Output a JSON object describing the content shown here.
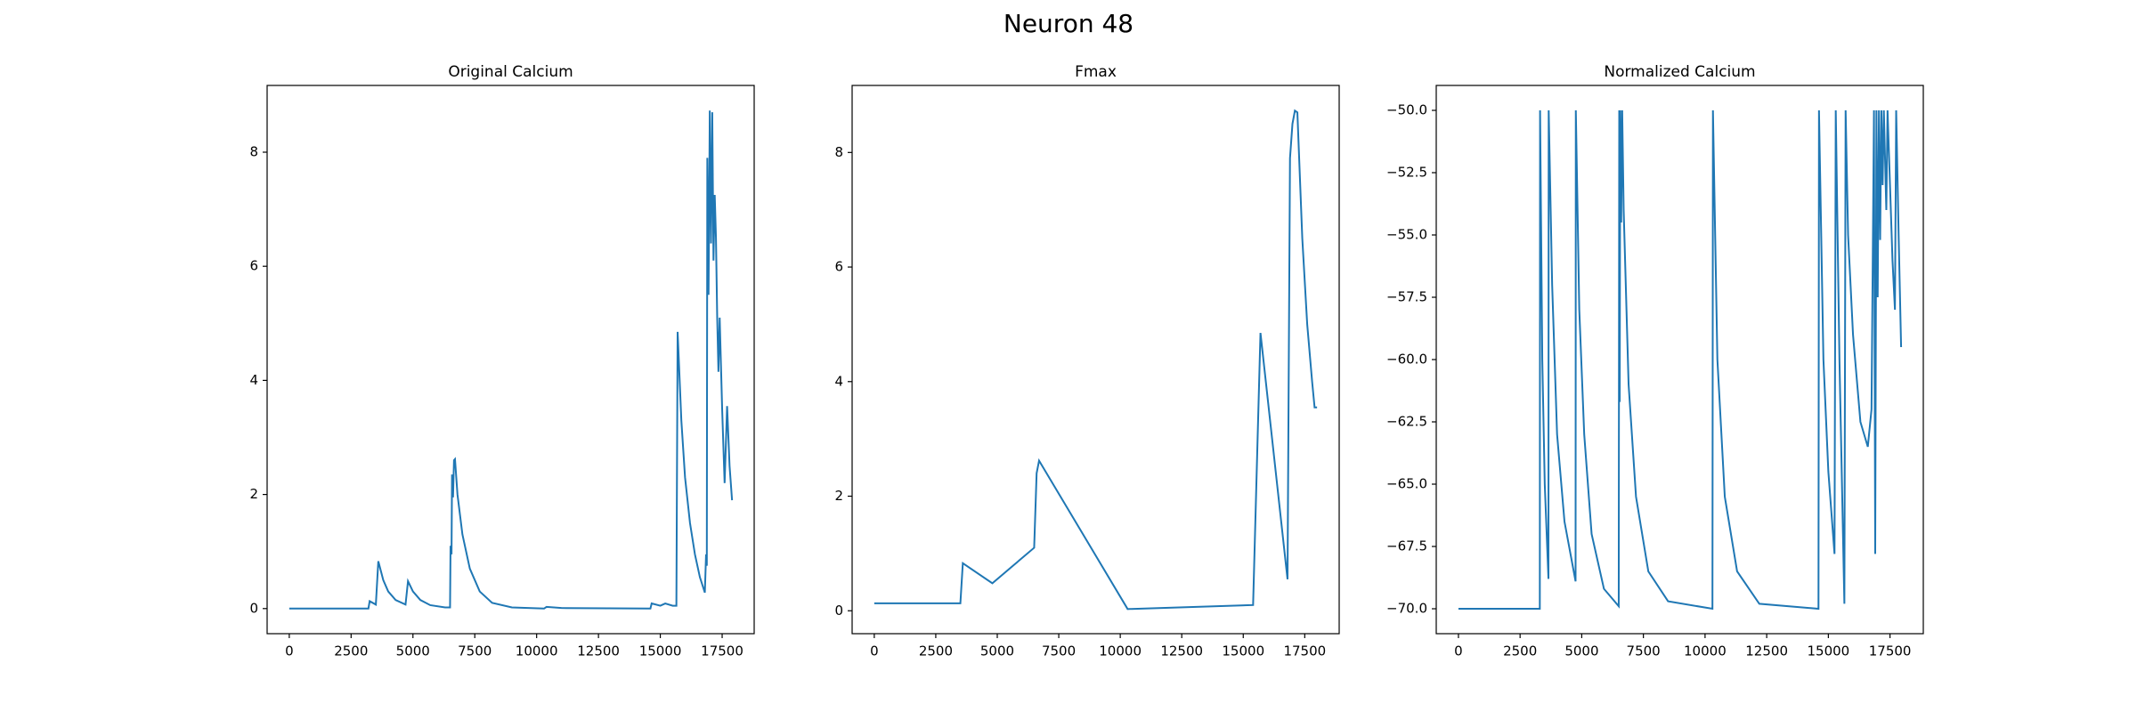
{
  "title": "Neuron 48",
  "chart_data": [
    {
      "type": "line",
      "title": "Original Calcium",
      "color": "#1f77b4",
      "x": [
        0,
        3200,
        3250,
        3500,
        3600,
        3800,
        4000,
        4300,
        4700,
        4800,
        5000,
        5300,
        5700,
        6300,
        6500,
        6520,
        6560,
        6580,
        6620,
        6660,
        6700,
        6800,
        7000,
        7300,
        7700,
        8200,
        9000,
        10300,
        10400,
        11000,
        14600,
        14650,
        15000,
        15200,
        15500,
        15650,
        15700,
        15850,
        16000,
        16200,
        16400,
        16600,
        16800,
        16850,
        16880,
        16900,
        16950,
        17000,
        17050,
        17100,
        17150,
        17200,
        17250,
        17300,
        17350,
        17400,
        17500,
        17600,
        17700,
        17800,
        17900
      ],
      "values": [
        0,
        0,
        0.13,
        0.07,
        0.83,
        0.5,
        0.3,
        0.15,
        0.07,
        0.48,
        0.3,
        0.15,
        0.06,
        0.02,
        0.02,
        1.1,
        0.95,
        2.35,
        1.95,
        2.6,
        2.62,
        2.0,
        1.3,
        0.7,
        0.3,
        0.1,
        0.02,
        0,
        0.03,
        0.01,
        0,
        0.09,
        0.05,
        0.09,
        0.05,
        0.05,
        4.85,
        3.3,
        2.3,
        1.5,
        0.95,
        0.55,
        0.28,
        0.95,
        0.75,
        7.9,
        5.5,
        8.73,
        6.4,
        8.7,
        6.1,
        7.25,
        6.5,
        5.1,
        4.15,
        5.1,
        3.5,
        2.2,
        3.55,
        2.5,
        1.9
      ],
      "xlim": [
        -895,
        18795
      ],
      "xticks": [
        0,
        2500,
        5000,
        7500,
        10000,
        12500,
        15000,
        17500
      ],
      "ylim": [
        -0.44,
        9.17
      ],
      "yticks": [
        0,
        2,
        4,
        6,
        8
      ]
    },
    {
      "type": "line",
      "title": "Fmax",
      "color": "#1f77b4",
      "x": [
        0,
        3500,
        3600,
        4800,
        6500,
        6600,
        6700,
        10300,
        15400,
        15700,
        16800,
        16900,
        17000,
        17100,
        17200,
        17400,
        17600,
        17800,
        17900,
        18000
      ],
      "values": [
        0.13,
        0.13,
        0.83,
        0.48,
        1.1,
        2.4,
        2.62,
        0.03,
        0.1,
        4.85,
        0.55,
        7.9,
        8.5,
        8.73,
        8.7,
        6.5,
        5.0,
        4.0,
        3.55,
        3.55
      ],
      "xlim": [
        -900,
        18900
      ],
      "xticks": [
        0,
        2500,
        5000,
        7500,
        10000,
        12500,
        15000,
        17500
      ],
      "ylim": [
        -0.4,
        9.17
      ],
      "yticks": [
        0,
        2,
        4,
        6,
        8
      ]
    },
    {
      "type": "line",
      "title": "Normalized Calcium",
      "color": "#1f77b4",
      "x": [
        0,
        3300,
        3310,
        3400,
        3500,
        3650,
        3660,
        3800,
        4000,
        4300,
        4750,
        4760,
        4900,
        5100,
        5400,
        5900,
        6500,
        6520,
        6540,
        6560,
        6600,
        6640,
        6700,
        6900,
        7200,
        7700,
        8500,
        10300,
        10320,
        10500,
        10800,
        11300,
        12200,
        14600,
        14620,
        14800,
        15000,
        15250,
        15300,
        15450,
        15650,
        15700,
        15800,
        16000,
        16300,
        16600,
        16750,
        16850,
        16900,
        16950,
        17000,
        17050,
        17100,
        17150,
        17200,
        17250,
        17350,
        17400,
        17500,
        17600,
        17700,
        17750,
        17850,
        17950
      ],
      "values": [
        -70,
        -70,
        -50,
        -60,
        -65,
        -68.8,
        -50,
        -57,
        -63,
        -66.5,
        -68.9,
        -50,
        -58,
        -63,
        -67,
        -69.2,
        -69.9,
        -50,
        -61.7,
        -50,
        -54.5,
        -50,
        -54,
        -61,
        -65.5,
        -68.5,
        -69.7,
        -70,
        -50,
        -60,
        -65.5,
        -68.5,
        -69.8,
        -70,
        -50,
        -60,
        -64.5,
        -67.8,
        -50,
        -60,
        -69.8,
        -50,
        -55,
        -59,
        -62.5,
        -63.5,
        -62,
        -50,
        -67.8,
        -50,
        -57.5,
        -50,
        -55.2,
        -50,
        -53,
        -50,
        -54,
        -50,
        -53,
        -56,
        -58,
        -50,
        -55,
        -59.5
      ],
      "xlim": [
        -900,
        18850
      ],
      "xticks": [
        0,
        2500,
        5000,
        7500,
        10000,
        12500,
        15000,
        17500
      ],
      "ylim": [
        -71,
        -49
      ],
      "yticks": [
        {
          "value": -70,
          "label": "−70.0"
        },
        {
          "value": -67.5,
          "label": "−67.5"
        },
        {
          "value": -65,
          "label": "−65.0"
        },
        {
          "value": -62.5,
          "label": "−62.5"
        },
        {
          "value": -60,
          "label": "−60.0"
        },
        {
          "value": -57.5,
          "label": "−57.5"
        },
        {
          "value": -55,
          "label": "−55.0"
        },
        {
          "value": -52.5,
          "label": "−52.5"
        },
        {
          "value": -50,
          "label": "−50.0"
        }
      ]
    }
  ]
}
